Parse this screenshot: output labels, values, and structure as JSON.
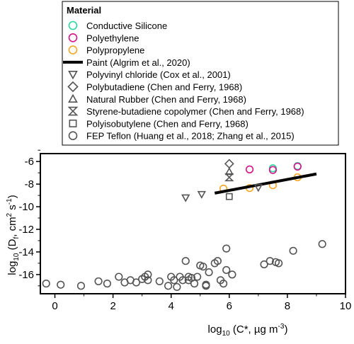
{
  "chart_data": {
    "type": "scatter",
    "xlabel": "log10 (C*, µg m-3)",
    "ylabel": "log10 (Df, cm2 s-1)",
    "xlabel_parts": {
      "pre": "log",
      "sub": "10",
      "mid": " (C*, µg m",
      "sup": "-3",
      "post": ")"
    },
    "ylabel_parts": {
      "pre": "log",
      "sub": "10",
      "mid1": " (D",
      "sub2": "f",
      "mid2": ", cm",
      "sup1": "2",
      "mid3": " s",
      "sup2": "-1",
      "post": ")"
    },
    "xlim": [
      -0.5,
      10
    ],
    "ylim": [
      -17.7,
      -5.3
    ],
    "x_ticks": [
      0,
      2,
      4,
      6,
      8,
      10
    ],
    "y_ticks": [
      -16,
      -14,
      -12,
      -10,
      -8,
      -6
    ],
    "legend": {
      "placement": "top",
      "title": "Material",
      "entries": [
        {
          "label": "Conductive Silicone",
          "marker": "circle",
          "color": "#2bd6a0"
        },
        {
          "label": "Polyethylene",
          "marker": "circle",
          "color": "#d4148c"
        },
        {
          "label": "Polypropylene",
          "marker": "circle",
          "color": "#f5a623"
        },
        {
          "label": "Paint (Algrim et al., 2020)",
          "marker": "line",
          "color": "#000000"
        },
        {
          "label": "Polyvinyl chloride (Cox et al., 2001)",
          "marker": "triangle-down",
          "color": "#555555"
        },
        {
          "label": "Polybutadiene (Chen and Ferry, 1968)",
          "marker": "diamond",
          "color": "#555555"
        },
        {
          "label": "Natural Rubber (Chen and Ferry, 1968)",
          "marker": "triangle-up",
          "color": "#555555"
        },
        {
          "label": "Styrene-butadiene copolymer (Chen and Ferry, 1968)",
          "marker": "hourglass",
          "color": "#555555"
        },
        {
          "label": "Polyisobutylene (Chen and Ferry, 1968)",
          "marker": "square",
          "color": "#555555"
        },
        {
          "label": "FEP Teflon (Huang et al., 2018; Zhang et al., 2015)",
          "marker": "circle",
          "color": "#555555"
        }
      ]
    },
    "series": [
      {
        "name": "Conductive Silicone",
        "marker": "circle",
        "color": "#2bd6a0",
        "points": [
          [
            7.5,
            -6.6
          ],
          [
            8.35,
            -6.4
          ]
        ]
      },
      {
        "name": "Polyethylene",
        "marker": "circle",
        "color": "#d4148c",
        "points": [
          [
            6.7,
            -6.7
          ],
          [
            7.5,
            -6.75
          ],
          [
            8.35,
            -6.45
          ]
        ]
      },
      {
        "name": "Polypropylene",
        "marker": "circle",
        "color": "#f5a623",
        "points": [
          [
            5.8,
            -8.4
          ],
          [
            6.7,
            -8.35
          ],
          [
            7.5,
            -8.1
          ],
          [
            8.35,
            -7.4
          ]
        ]
      },
      {
        "name": "Paint (Algrim et al., 2020)",
        "type": "line",
        "color": "#000000",
        "points": [
          [
            5.5,
            -8.8
          ],
          [
            9.0,
            -7.1
          ]
        ]
      },
      {
        "name": "Polyvinyl chloride (Cox et al., 2001)",
        "marker": "triangle-down",
        "color": "#555555",
        "points": [
          [
            4.5,
            -9.2
          ],
          [
            5.05,
            -8.9
          ],
          [
            7.0,
            -8.3
          ]
        ]
      },
      {
        "name": "Polybutadiene (Chen and Ferry, 1968)",
        "marker": "diamond",
        "color": "#555555",
        "points": [
          [
            6.0,
            -6.2
          ]
        ]
      },
      {
        "name": "Natural Rubber (Chen and Ferry, 1968)",
        "marker": "triangle-up",
        "color": "#555555",
        "points": [
          [
            6.0,
            -6.9
          ]
        ]
      },
      {
        "name": "Styrene-butadiene copolymer (Chen and Ferry, 1968)",
        "marker": "hourglass",
        "color": "#555555",
        "points": [
          [
            6.0,
            -7.4
          ]
        ]
      },
      {
        "name": "Polyisobutylene (Chen and Ferry, 1968)",
        "marker": "square",
        "color": "#555555",
        "points": [
          [
            6.0,
            -9.1
          ]
        ]
      },
      {
        "name": "FEP Teflon (Huang et al., 2018; Zhang et al., 2015)",
        "marker": "circle",
        "color": "#555555",
        "points": [
          [
            -0.3,
            -16.8
          ],
          [
            0.2,
            -16.9
          ],
          [
            0.9,
            -17.0
          ],
          [
            1.5,
            -16.6
          ],
          [
            1.8,
            -16.8
          ],
          [
            2.2,
            -16.2
          ],
          [
            2.4,
            -16.7
          ],
          [
            2.6,
            -16.5
          ],
          [
            2.8,
            -16.7
          ],
          [
            3.0,
            -16.4
          ],
          [
            3.1,
            -16.2
          ],
          [
            3.2,
            -16.5
          ],
          [
            3.2,
            -16.0
          ],
          [
            3.6,
            -16.6
          ],
          [
            3.9,
            -17.0
          ],
          [
            4.0,
            -16.2
          ],
          [
            4.1,
            -16.5
          ],
          [
            4.2,
            -17.1
          ],
          [
            4.3,
            -16.2
          ],
          [
            4.4,
            -16.5
          ],
          [
            4.5,
            -14.8
          ],
          [
            4.6,
            -16.5
          ],
          [
            4.6,
            -16.2
          ],
          [
            4.7,
            -16.3
          ],
          [
            4.8,
            -16.8
          ],
          [
            4.9,
            -16.2
          ],
          [
            5.0,
            -15.2
          ],
          [
            5.1,
            -15.3
          ],
          [
            5.2,
            -17.0
          ],
          [
            5.2,
            -16.9
          ],
          [
            5.3,
            -15.8
          ],
          [
            5.5,
            -15.0
          ],
          [
            5.6,
            -14.8
          ],
          [
            5.7,
            -16.5
          ],
          [
            5.8,
            -16.8
          ],
          [
            5.9,
            -13.7
          ],
          [
            5.9,
            -15.6
          ],
          [
            6.1,
            -16.0
          ],
          [
            7.2,
            -15.1
          ],
          [
            7.4,
            -14.8
          ],
          [
            7.6,
            -14.9
          ],
          [
            7.7,
            -15.0
          ],
          [
            8.2,
            -13.9
          ],
          [
            9.2,
            -13.3
          ]
        ]
      }
    ]
  }
}
